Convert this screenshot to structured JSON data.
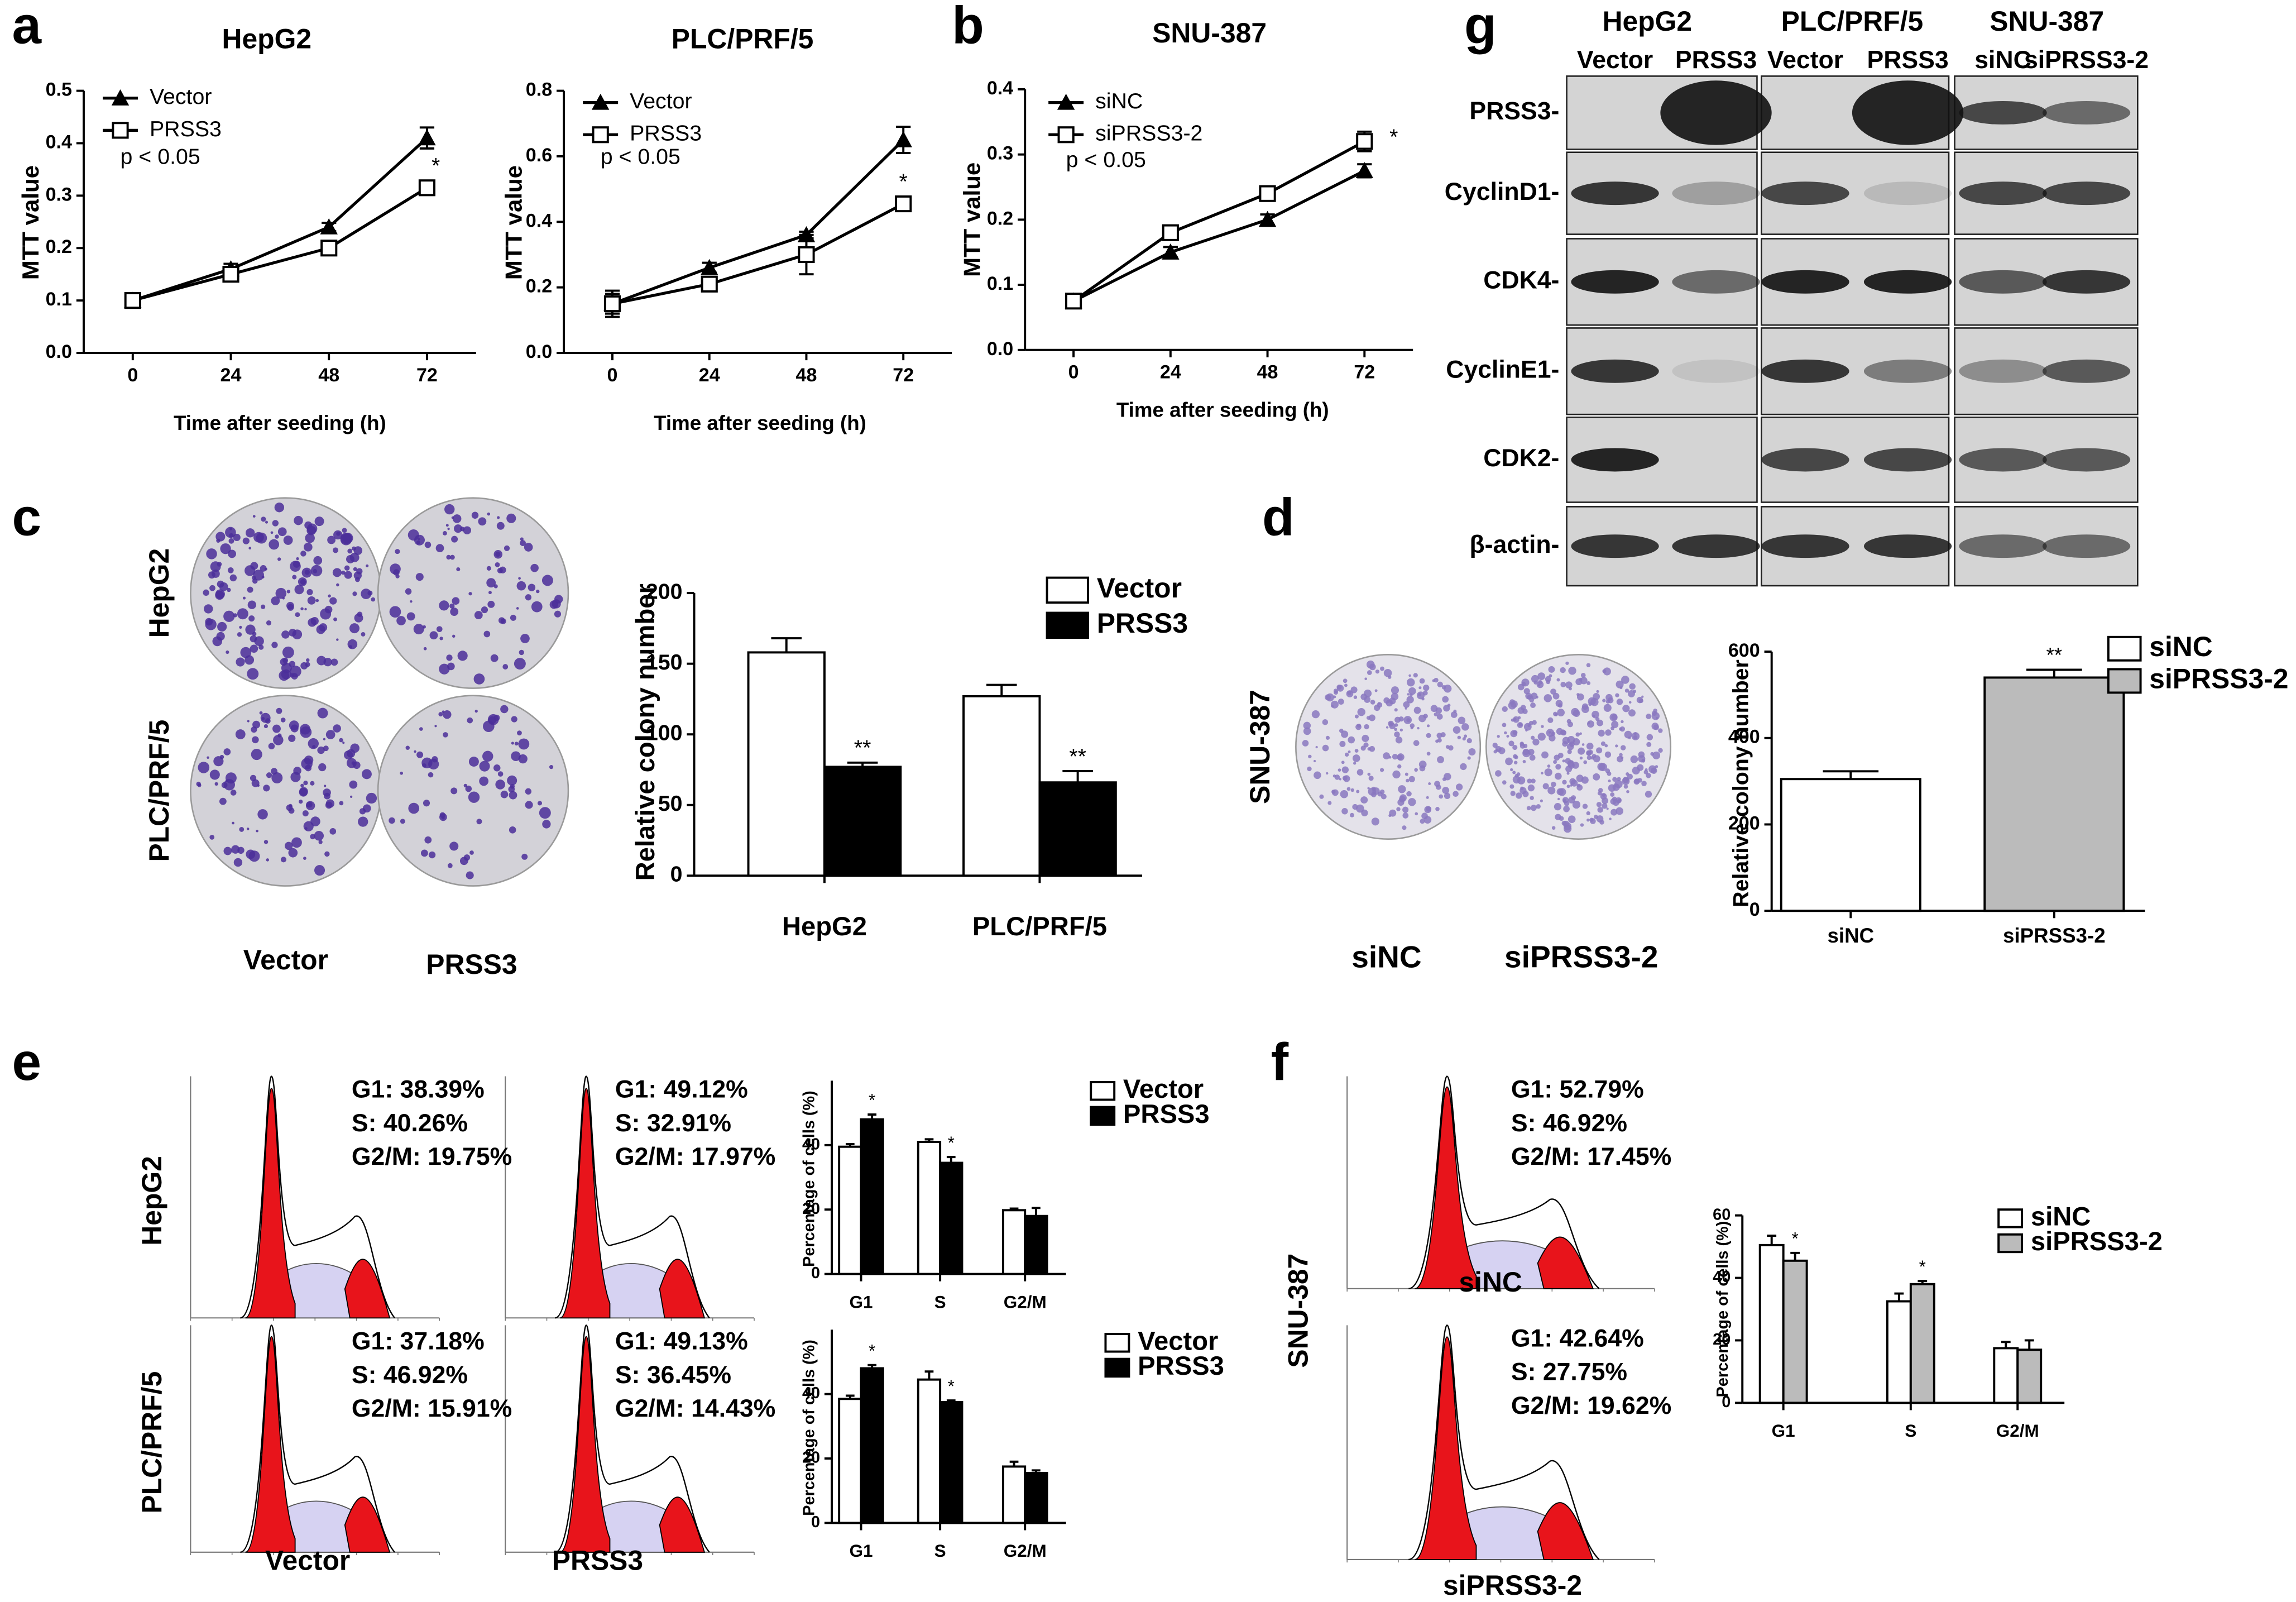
{
  "panel_letters": [
    "a",
    "b",
    "c",
    "d",
    "e",
    "f",
    "g"
  ],
  "chart_data": [
    {
      "type": "line",
      "title": "HepG2",
      "x_label": "Time after seeding (h)",
      "y_label": "MTT value",
      "note": "p < 0.05",
      "x": [
        0,
        24,
        48,
        72
      ],
      "xlim": [
        -12,
        84
      ],
      "xticks": [
        0,
        24,
        48,
        72
      ],
      "ylim": [
        0,
        0.5
      ],
      "yticks": [
        {
          "value": 0,
          "label": "0.0"
        },
        0.1,
        0.2,
        0.3,
        0.4,
        0.5
      ],
      "series": [
        {
          "name": "Vector",
          "color": "#000000",
          "marker": "triangle",
          "values": [
            0.1,
            0.16,
            0.24,
            0.41
          ],
          "errors": [
            0.01,
            0.01,
            0.008,
            0.02
          ]
        },
        {
          "name": "PRSS3",
          "color": "#000000",
          "marker": "square",
          "values": [
            0.1,
            0.15,
            0.2,
            0.315
          ],
          "errors": [
            0.01,
            0.008,
            0.008,
            0.008
          ],
          "annotations": [
            null,
            null,
            null,
            "*"
          ]
        }
      ]
    },
    {
      "type": "line",
      "title": "PLC/PRF/5",
      "x_label": "Time after seeding (h)",
      "y_label": "MTT value",
      "note": "p < 0.05",
      "x": [
        0,
        24,
        48,
        72
      ],
      "xlim": [
        -12,
        84
      ],
      "xticks": [
        0,
        24,
        48,
        72
      ],
      "ylim": [
        0,
        0.8
      ],
      "yticks": [
        {
          "value": 0,
          "label": "0.0"
        },
        0.2,
        0.4,
        0.6,
        0.8
      ],
      "series": [
        {
          "name": "Vector",
          "color": "#000000",
          "marker": "triangle",
          "values": [
            0.15,
            0.26,
            0.36,
            0.65
          ],
          "errors": [
            0.03,
            0.015,
            0.01,
            0.04
          ]
        },
        {
          "name": "PRSS3",
          "color": "#000000",
          "marker": "square",
          "values": [
            0.15,
            0.21,
            0.3,
            0.455
          ],
          "errors": [
            0.04,
            0.015,
            0.06,
            0.01
          ],
          "annotations": [
            null,
            null,
            null,
            "*"
          ]
        }
      ]
    },
    {
      "type": "line",
      "title": "SNU-387",
      "x_label": "Time after seeding (h)",
      "y_label": "MTT value",
      "note": "p < 0.05",
      "x": [
        0,
        24,
        48,
        72
      ],
      "xlim": [
        -12,
        84
      ],
      "xticks": [
        0,
        24,
        48,
        72
      ],
      "ylim": [
        0,
        0.4
      ],
      "yticks": [
        {
          "value": 0,
          "label": "0.0"
        },
        0.1,
        0.2,
        0.3,
        0.4
      ],
      "series": [
        {
          "name": "siNC",
          "color": "#000000",
          "marker": "triangle",
          "values": [
            0.075,
            0.15,
            0.2,
            0.275
          ],
          "errors": [
            0.008,
            0.008,
            0.008,
            0.01
          ]
        },
        {
          "name": "siPRSS3-2",
          "color": "#000000",
          "marker": "square",
          "values": [
            0.075,
            0.18,
            0.24,
            0.32
          ],
          "errors": [
            0.008,
            0.008,
            0.005,
            0.015
          ],
          "annotations": [
            null,
            null,
            null,
            "*"
          ]
        }
      ]
    },
    {
      "type": "bar",
      "y_label": "Relative colony number",
      "categories": [
        "HepG2",
        "PLC/PRF/5"
      ],
      "ylim": [
        0,
        200
      ],
      "yticks": [
        0,
        50,
        100,
        150,
        200
      ],
      "series": [
        {
          "name": "Vector",
          "color": "#ffffff",
          "values": [
            158,
            127
          ],
          "errors": [
            10,
            8
          ]
        },
        {
          "name": "PRSS3",
          "color": "#000000",
          "values": [
            77,
            66
          ],
          "errors": [
            3,
            8
          ],
          "annotations": [
            "**",
            "**"
          ]
        }
      ]
    },
    {
      "type": "bar",
      "y_label": "Relative colony number",
      "categories": [
        "siNC",
        "siPRSS3-2"
      ],
      "ylim": [
        0,
        600
      ],
      "yticks": [
        0,
        200,
        400,
        600
      ],
      "values": [
        305,
        540
      ],
      "errors": [
        18,
        18
      ],
      "colors": [
        "#ffffff",
        "#bbbbbb"
      ],
      "annotations": [
        null,
        "**"
      ]
    },
    {
      "type": "bar",
      "y_label": "Percentage of cells (%)",
      "categories": [
        "G1",
        "S",
        "G2/M"
      ],
      "ylim": [
        0,
        60
      ],
      "yticks": [
        0,
        20,
        40
      ],
      "series": [
        {
          "name": "Vector",
          "color": "#ffffff",
          "values": [
            39.5,
            41,
            19.8
          ],
          "errors": [
            0.8,
            0.8,
            0.5
          ]
        },
        {
          "name": "PRSS3",
          "color": "#000000",
          "values": [
            48,
            34.5,
            18
          ],
          "errors": [
            1.5,
            1.8,
            2.5
          ],
          "annotations": [
            "*",
            "*",
            null
          ]
        }
      ]
    },
    {
      "type": "bar",
      "y_label": "Percentage of cells (%)",
      "categories": [
        "G1",
        "S",
        "G2/M"
      ],
      "ylim": [
        0,
        60
      ],
      "yticks": [
        0,
        20,
        40
      ],
      "series": [
        {
          "name": "Vector",
          "color": "#ffffff",
          "values": [
            38.5,
            44.5,
            17.5
          ],
          "errors": [
            1,
            2.5,
            1.5
          ]
        },
        {
          "name": "PRSS3",
          "color": "#000000",
          "values": [
            48,
            37.5,
            15.5
          ],
          "errors": [
            1,
            0.5,
            0.8
          ],
          "annotations": [
            "*",
            "*",
            null
          ]
        }
      ]
    },
    {
      "type": "bar",
      "y_label": "Percentage of cells (%)",
      "categories": [
        "G1",
        "S",
        "G2/M"
      ],
      "ylim": [
        0,
        60
      ],
      "yticks": [
        0,
        20,
        40,
        60
      ],
      "series": [
        {
          "name": "siNC",
          "color": "#ffffff",
          "values": [
            50.5,
            32.5,
            17.5
          ],
          "errors": [
            3,
            2.5,
            2
          ]
        },
        {
          "name": "siPRSS3-2",
          "color": "#bbbbbb",
          "values": [
            45.5,
            38,
            17
          ],
          "errors": [
            2.5,
            1,
            3
          ],
          "annotations": [
            "*",
            "*",
            null
          ]
        }
      ]
    }
  ],
  "colony_c": {
    "row_labels": [
      "HepG2",
      "PLC/PRF/5"
    ],
    "col_labels": [
      "Vector",
      "PRSS3"
    ]
  },
  "colony_d": {
    "row_label": "SNU-387",
    "col_labels": [
      "siNC",
      "siPRSS3-2"
    ]
  },
  "flow_e": {
    "row_labels": [
      "HepG2",
      "PLC/PRF/5"
    ],
    "col_labels": [
      "Vector",
      "PRSS3"
    ],
    "stats": [
      [
        "G1: 38.39%",
        "S: 40.26%",
        "G2/M: 19.75%"
      ],
      [
        "G1: 49.12%",
        "S: 32.91%",
        "G2/M: 17.97%"
      ],
      [
        "G1: 37.18%",
        "S: 46.92%",
        "G2/M: 15.91%"
      ],
      [
        "G1: 49.13%",
        "S: 36.45%",
        "G2/M: 14.43%"
      ]
    ]
  },
  "flow_f": {
    "row_label": "SNU-387",
    "col_labels": [
      "siNC",
      "siPRSS3-2"
    ],
    "stats": [
      [
        "G1: 52.79%",
        "S: 46.92%",
        "G2/M: 17.45%"
      ],
      [
        "G1: 42.64%",
        "S: 27.75%",
        "G2/M: 19.62%"
      ]
    ]
  },
  "western": {
    "groups": [
      "HepG2",
      "PLC/PRF/5",
      "SNU-387"
    ],
    "lanes": [
      "Vector",
      "PRSS3",
      "Vector",
      "PRSS3",
      "siNC",
      "siPRSS3-2"
    ],
    "proteins": [
      "PRSS3-",
      "CyclinD1-",
      "CDK4-",
      "CyclinE1-",
      "CDK2-",
      "β-actin-"
    ]
  }
}
